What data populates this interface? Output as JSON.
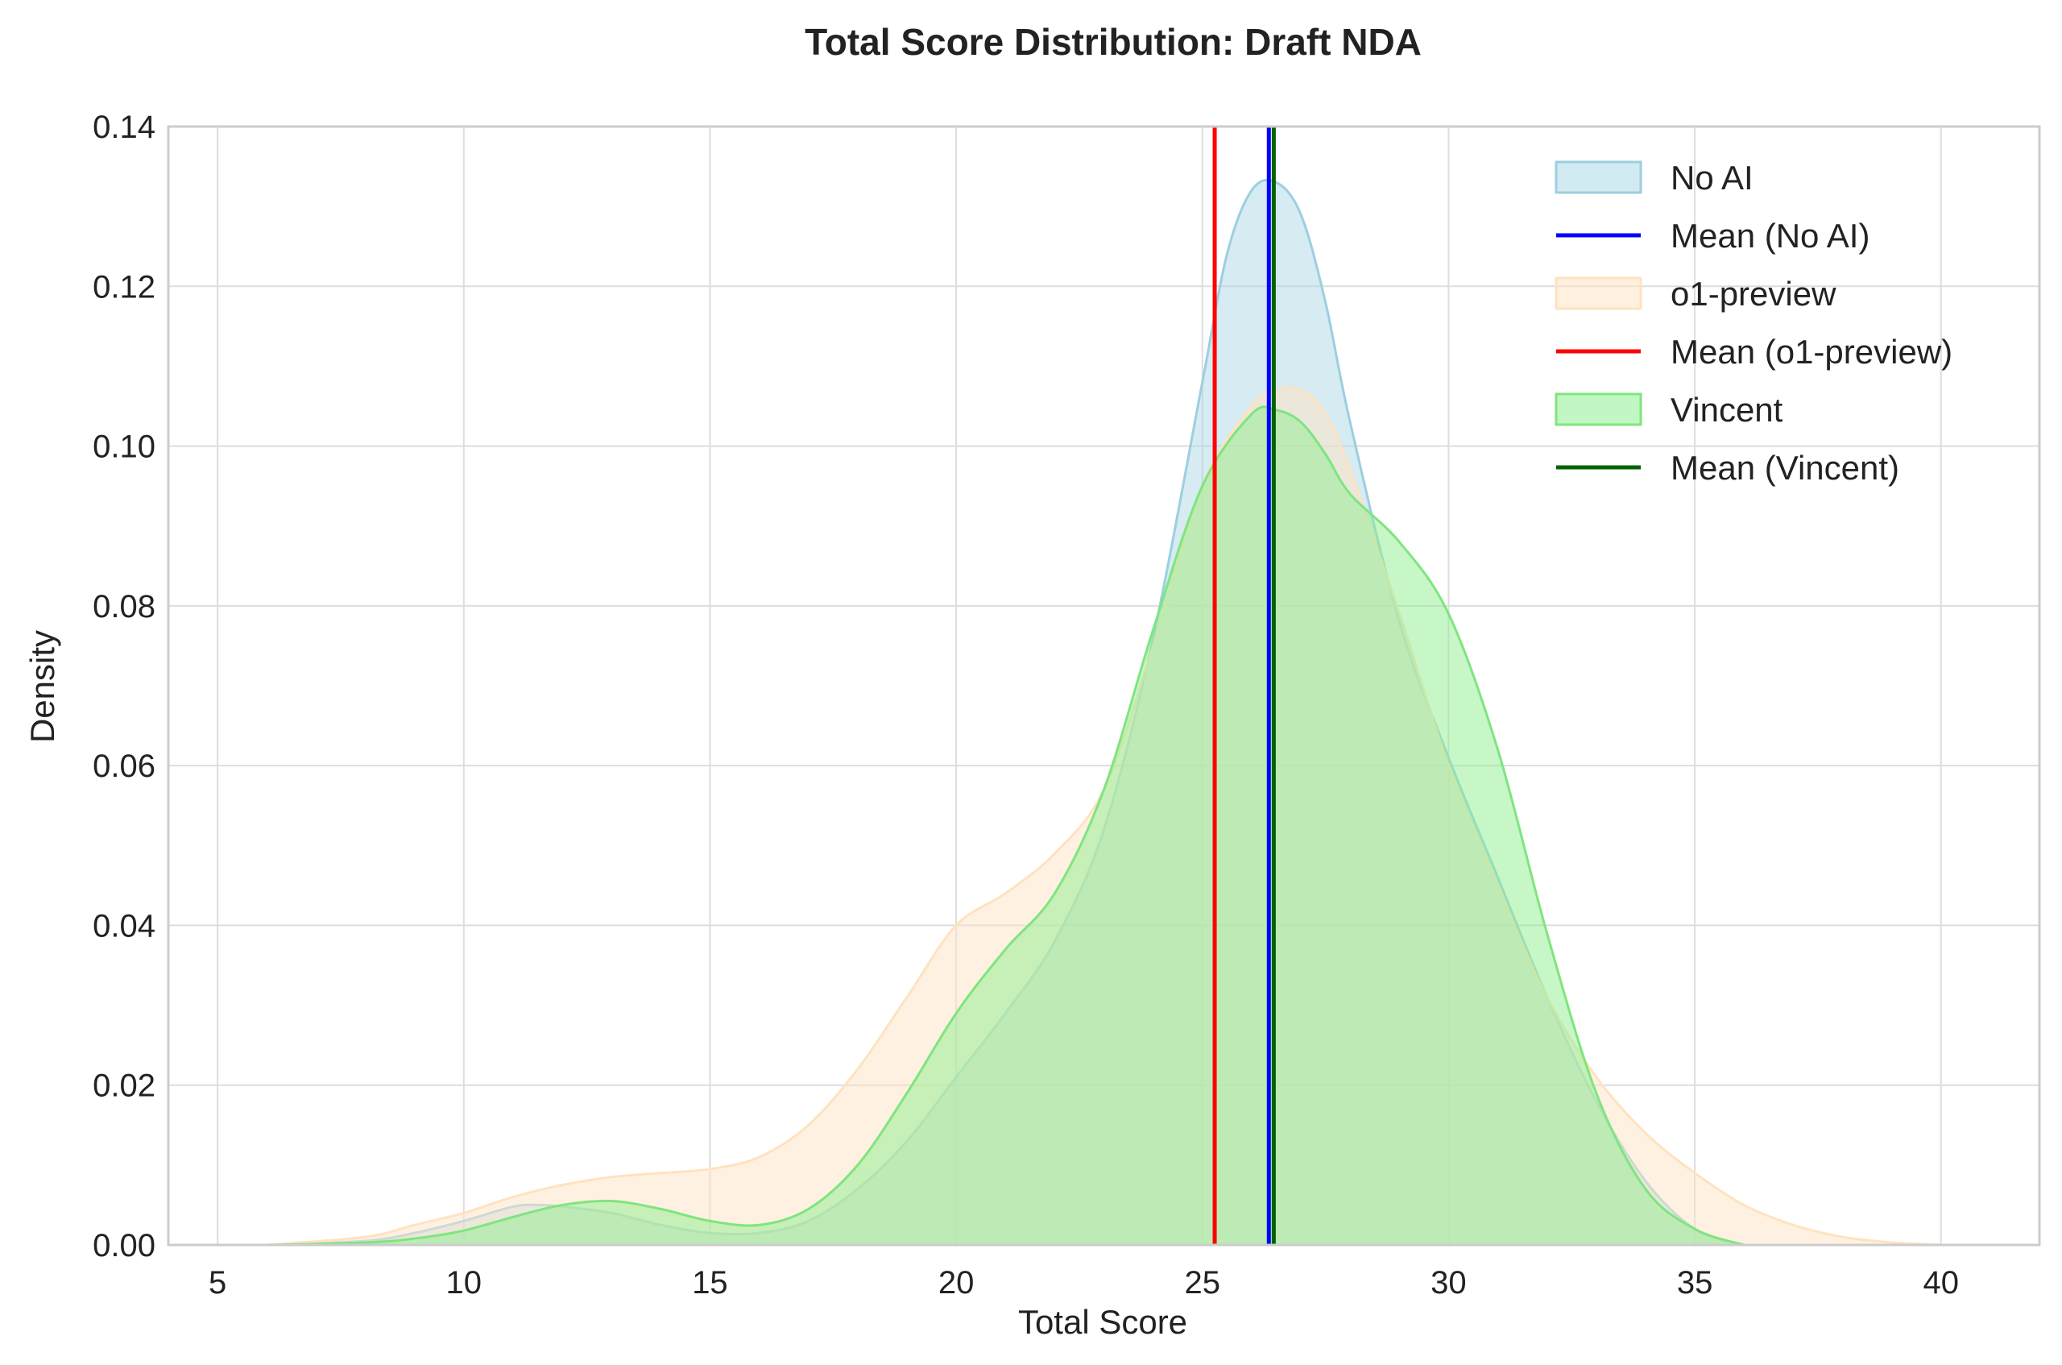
{
  "chart_data": {
    "type": "area",
    "title": "Total Score Distribution: Draft NDA",
    "xlabel": "Total Score",
    "ylabel": "Density",
    "xlim": [
      4,
      42
    ],
    "ylim": [
      0,
      0.14
    ],
    "xticks": [
      5,
      10,
      15,
      20,
      25,
      30,
      35,
      40
    ],
    "yticks": [
      0.0,
      0.02,
      0.04,
      0.06,
      0.08,
      0.1,
      0.12,
      0.14
    ],
    "xtick_labels": [
      "5",
      "10",
      "15",
      "20",
      "25",
      "30",
      "35",
      "40"
    ],
    "ytick_labels": [
      "0.00",
      "0.02",
      "0.04",
      "0.06",
      "0.08",
      "0.10",
      "0.12",
      "0.14"
    ],
    "grid": true,
    "legend_position": "top-right",
    "series": [
      {
        "name": "No AI",
        "fill": "#add8e6",
        "stroke": "#9ccfe0",
        "x": [
          6,
          8,
          9,
          10,
          11,
          11.5,
          12,
          13,
          14,
          15,
          16,
          17,
          18,
          19,
          20,
          21,
          22,
          23,
          24,
          25,
          25.5,
          26,
          26.5,
          27,
          27.5,
          28,
          29,
          30,
          31,
          32,
          33,
          34,
          35,
          36
        ],
        "y": [
          0.0,
          0.0005,
          0.0015,
          0.003,
          0.0048,
          0.005,
          0.0048,
          0.004,
          0.0025,
          0.0015,
          0.0015,
          0.003,
          0.007,
          0.013,
          0.021,
          0.029,
          0.038,
          0.052,
          0.076,
          0.108,
          0.124,
          0.132,
          0.133,
          0.129,
          0.118,
          0.103,
          0.078,
          0.061,
          0.046,
          0.031,
          0.018,
          0.008,
          0.002,
          0.0
        ]
      },
      {
        "name": "o1-preview",
        "fill": "#ffe4c4",
        "stroke": "#ffe2c0",
        "x": [
          6,
          8,
          9,
          10,
          11,
          12,
          13,
          14,
          15,
          16,
          17,
          18,
          19,
          20,
          21,
          22,
          23,
          24,
          25,
          26,
          26.5,
          27,
          27.5,
          28,
          29,
          30,
          31,
          32,
          33,
          34,
          35,
          36,
          37,
          38,
          39,
          40
        ],
        "y": [
          0.0,
          0.001,
          0.0025,
          0.004,
          0.006,
          0.0075,
          0.0085,
          0.009,
          0.0095,
          0.011,
          0.015,
          0.022,
          0.031,
          0.04,
          0.044,
          0.049,
          0.057,
          0.075,
          0.095,
          0.105,
          0.107,
          0.107,
          0.104,
          0.097,
          0.079,
          0.06,
          0.045,
          0.031,
          0.021,
          0.014,
          0.009,
          0.005,
          0.0025,
          0.001,
          0.0003,
          0.0
        ]
      },
      {
        "name": "Vincent",
        "fill": "#90ee90",
        "stroke": "#7fe57f",
        "x": [
          6,
          8,
          9,
          10,
          11,
          12,
          13,
          14,
          15,
          16,
          17,
          18,
          19,
          20,
          21,
          22,
          23,
          24,
          25,
          26,
          26.5,
          27,
          27.5,
          28,
          29,
          30,
          31,
          32,
          33,
          34,
          35,
          36
        ],
        "y": [
          0.0,
          0.0003,
          0.0008,
          0.0018,
          0.0035,
          0.005,
          0.0055,
          0.0045,
          0.003,
          0.0025,
          0.0045,
          0.01,
          0.019,
          0.029,
          0.037,
          0.044,
          0.057,
          0.077,
          0.095,
          0.104,
          0.1045,
          0.103,
          0.099,
          0.094,
          0.088,
          0.079,
          0.062,
          0.039,
          0.019,
          0.007,
          0.002,
          0.0
        ]
      }
    ],
    "means": [
      {
        "name": "Mean (No AI)",
        "x": 26.35,
        "color": "#0000ff"
      },
      {
        "name": "Mean (o1-preview)",
        "x": 25.25,
        "color": "#ff0000"
      },
      {
        "name": "Mean (Vincent)",
        "x": 26.45,
        "color": "#006400"
      }
    ],
    "legend": [
      {
        "label": "No AI",
        "kind": "patch",
        "fill": "#add8e6",
        "stroke": "#9ccfe0"
      },
      {
        "label": "Mean (No AI)",
        "kind": "line",
        "color": "#0000ff"
      },
      {
        "label": "o1-preview",
        "kind": "patch",
        "fill": "#ffe4c4",
        "stroke": "#ffe2c0"
      },
      {
        "label": "Mean (o1-preview)",
        "kind": "line",
        "color": "#ff0000"
      },
      {
        "label": "Vincent",
        "kind": "patch",
        "fill": "#90ee90",
        "stroke": "#7fe57f"
      },
      {
        "label": "Mean (Vincent)",
        "kind": "line",
        "color": "#006400"
      }
    ]
  }
}
